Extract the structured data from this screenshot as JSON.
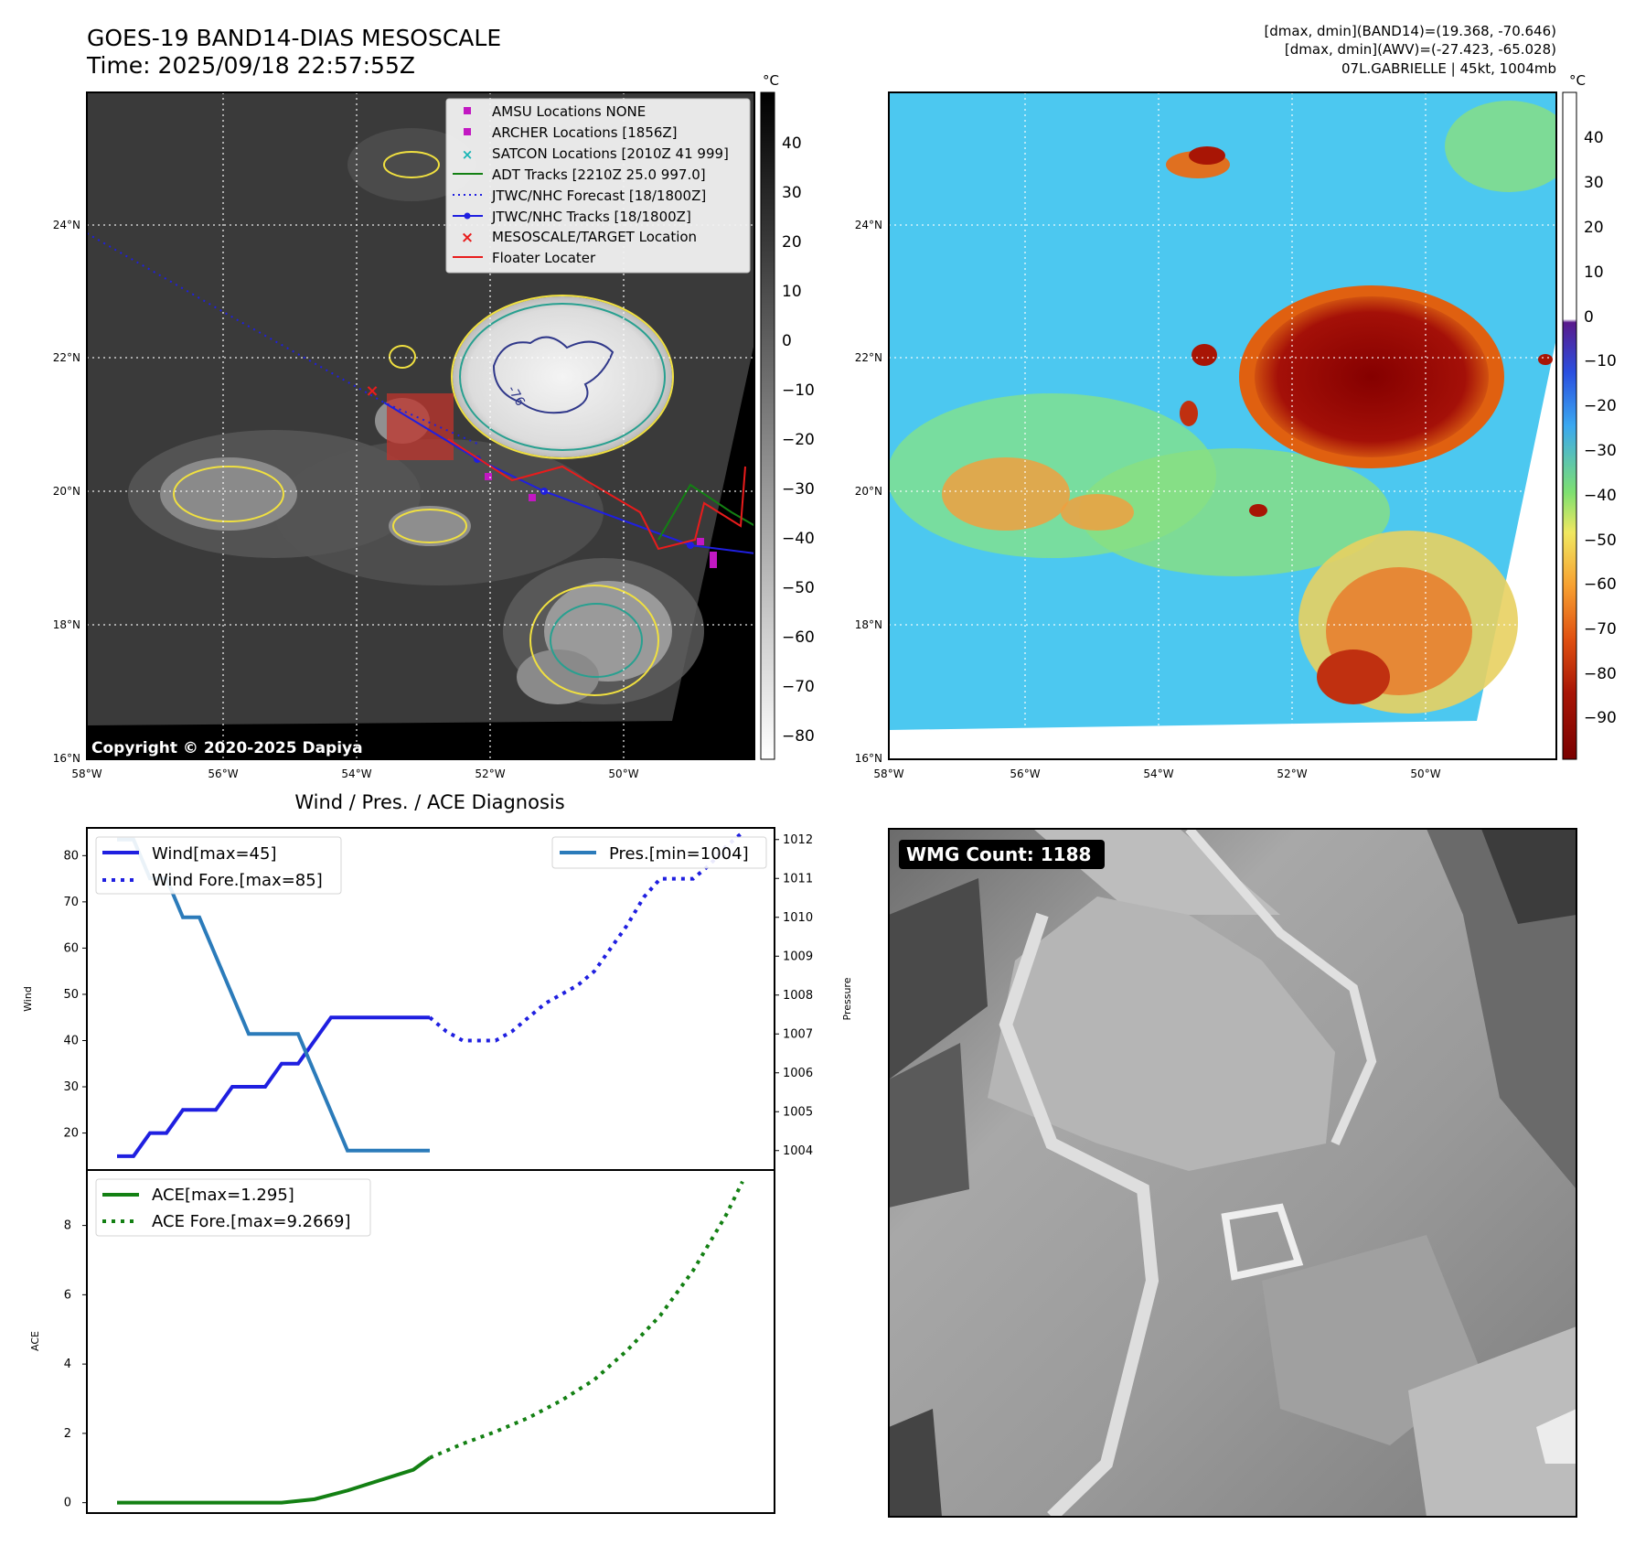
{
  "header": {
    "title": "GOES-19 BAND14-DIAS MESOSCALE",
    "time": "Time: 2025/09/18 22:57:55Z",
    "dmax_band14": "[dmax, dmin](BAND14)=(19.368, -70.646)",
    "dmax_awv": "[dmax, dmin](AWV)=(-27.423, -65.028)",
    "storm": "07L.GABRIELLE | 45kt, 1004mb"
  },
  "colors": {
    "wind": "#1f1fe0",
    "pres": "#2b7bba",
    "ace": "#138013",
    "adt": "#138013",
    "archer": "#c218c2",
    "satcon": "#17b5b5",
    "target": "#e81c1c",
    "floater": "#e81c1c",
    "gridline": "#ffffff"
  },
  "map_ir": {
    "copyright": "Copyright © 2020-2025 Dapiya",
    "colorbar_unit": "°C",
    "colorbar_ticks": [
      "40",
      "30",
      "20",
      "10",
      "0",
      "−10",
      "−20",
      "−30",
      "−40",
      "−50",
      "−60",
      "−70",
      "−80"
    ],
    "lat_ticks": [
      "24°N",
      "22°N",
      "20°N",
      "18°N",
      "16°N"
    ],
    "lon_ticks": [
      "58°W",
      "56°W",
      "54°W",
      "52°W",
      "50°W"
    ],
    "contour_label": "-76",
    "legend": [
      {
        "label": "AMSU Locations NONE",
        "icon": "magenta-square"
      },
      {
        "label": "ARCHER Locations [1856Z]",
        "icon": "magenta-square"
      },
      {
        "label": "SATCON Locations [2010Z 41 999]",
        "icon": "cyan-x"
      },
      {
        "label": "ADT Tracks [2210Z 25.0 997.0]",
        "icon": "green-line"
      },
      {
        "label": "JTWC/NHC Forecast [18/1800Z]",
        "icon": "blue-dotted-line"
      },
      {
        "label": "JTWC/NHC Tracks [18/1800Z]",
        "icon": "blue-line-dots"
      },
      {
        "label": "MESOSCALE/TARGET Location",
        "icon": "red-x"
      },
      {
        "label": "Floater Locater",
        "icon": "red-line"
      }
    ]
  },
  "map_awv": {
    "colorbar_unit": "°C",
    "colorbar_ticks": [
      "40",
      "30",
      "20",
      "10",
      "0",
      "−10",
      "−20",
      "−30",
      "−40",
      "−50",
      "−60",
      "−70",
      "−80",
      "−90"
    ],
    "lat_ticks": [
      "24°N",
      "22°N",
      "20°N",
      "18°N",
      "16°N"
    ],
    "lon_ticks": [
      "58°W",
      "56°W",
      "54°W",
      "52°W",
      "50°W"
    ]
  },
  "wmg": {
    "label": "WMG Count: 1188"
  },
  "chart_data": [
    {
      "type": "line",
      "title": "Wind / Pres. / ACE Diagnosis",
      "ylabel": "Wind",
      "ylabel_right": "Pressure",
      "ylim": [
        12,
        86
      ],
      "ylim_right": [
        1003.5,
        1012.3
      ],
      "y_ticks": [
        "80",
        "70",
        "60",
        "50",
        "40",
        "30",
        "20"
      ],
      "y_ticks_right": [
        "1012",
        "1011",
        "1010",
        "1009",
        "1008",
        "1007",
        "1006",
        "1005",
        "1004"
      ],
      "x": [
        0,
        1,
        2,
        3,
        4,
        5,
        6,
        7,
        8,
        9,
        10,
        11,
        12,
        13,
        14,
        15,
        16,
        17,
        18,
        19,
        20,
        21,
        22,
        23,
        24,
        25,
        26,
        27,
        28,
        29,
        30,
        31,
        32,
        33,
        34,
        35,
        36,
        37,
        38
      ],
      "series": [
        {
          "name": "Wind[max=45]",
          "style": "solid",
          "axis": "left",
          "x": [
            0,
            1,
            2,
            3,
            4,
            5,
            6,
            7,
            8,
            9,
            10,
            11,
            12,
            13,
            14,
            15,
            16,
            17,
            18,
            19
          ],
          "values": [
            15,
            15,
            20,
            20,
            25,
            25,
            25,
            30,
            30,
            30,
            35,
            35,
            40,
            45,
            45,
            45,
            45,
            45,
            45,
            45
          ]
        },
        {
          "name": "Wind Fore.[max=85]",
          "style": "dotted",
          "axis": "left",
          "x": [
            19,
            20,
            21,
            22,
            23,
            24,
            25,
            26,
            27,
            28,
            29,
            30,
            31,
            32,
            33,
            34,
            35,
            36,
            37,
            38
          ],
          "values": [
            45,
            42,
            40,
            40,
            40,
            42,
            45,
            48,
            50,
            52,
            55,
            60,
            65,
            71,
            75,
            75,
            75,
            78,
            82,
            85
          ]
        },
        {
          "name": "Pres.[min=1004]",
          "style": "solid",
          "axis": "right",
          "x": [
            0,
            1,
            2,
            3,
            4,
            5,
            6,
            7,
            8,
            9,
            10,
            11,
            12,
            13,
            14,
            15,
            16,
            17,
            18,
            19
          ],
          "values": [
            1012,
            1012,
            1011,
            1011,
            1010,
            1010,
            1009,
            1008,
            1007,
            1007,
            1007,
            1007,
            1006,
            1005,
            1004,
            1004,
            1004,
            1004,
            1004,
            1004
          ]
        }
      ]
    },
    {
      "type": "line",
      "ylabel": "ACE",
      "ylim": [
        -0.3,
        9.6
      ],
      "y_ticks": [
        "8",
        "6",
        "4",
        "2",
        "0"
      ],
      "series": [
        {
          "name": "ACE[max=1.295]",
          "style": "solid",
          "x": [
            0,
            2,
            4,
            6,
            8,
            10,
            12,
            14,
            16,
            18,
            19
          ],
          "values": [
            0,
            0,
            0,
            0,
            0,
            0,
            0.1,
            0.35,
            0.65,
            0.95,
            1.295
          ]
        },
        {
          "name": "ACE Fore.[max=9.2669]",
          "style": "dotted",
          "x": [
            19,
            21,
            23,
            25,
            27,
            29,
            31,
            33,
            35,
            37,
            38
          ],
          "values": [
            1.295,
            1.7,
            2.05,
            2.45,
            2.95,
            3.55,
            4.4,
            5.4,
            6.7,
            8.3,
            9.2669
          ]
        }
      ]
    }
  ]
}
